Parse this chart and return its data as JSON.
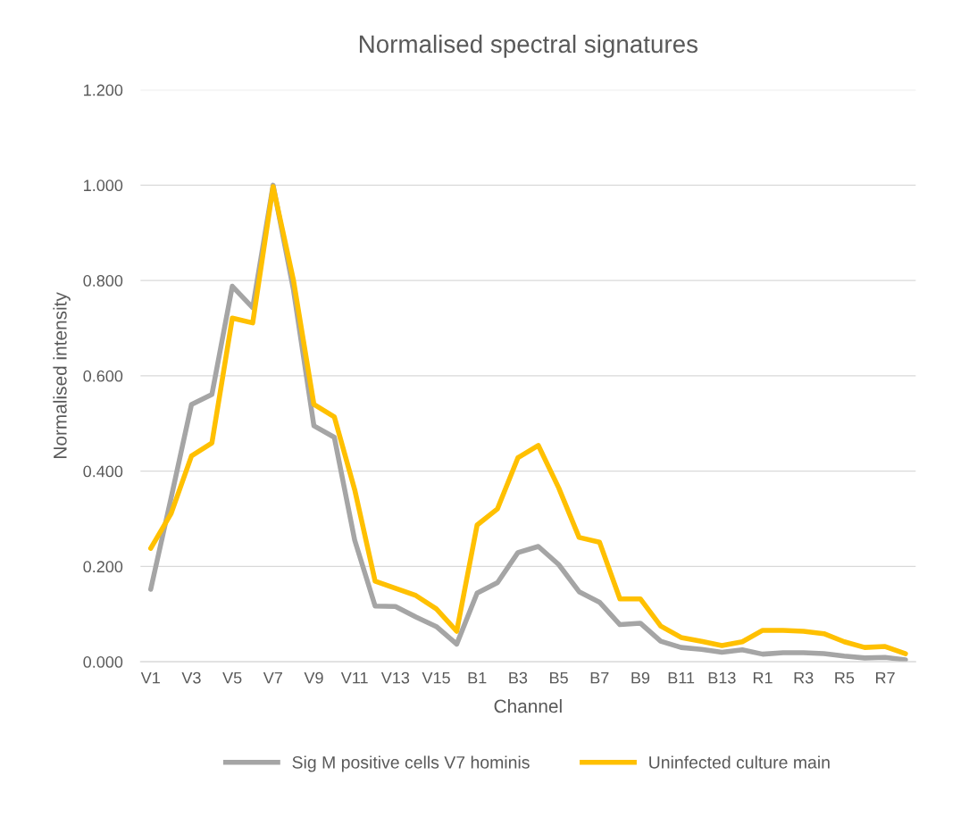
{
  "chart_data": {
    "type": "line",
    "title": "Normalised spectral signatures",
    "xlabel": "Channel",
    "ylabel": "Normalised intensity",
    "categories": [
      "V1",
      null,
      "V3",
      null,
      "V5",
      null,
      "V7",
      null,
      "V9",
      null,
      "V11",
      null,
      "V13",
      null,
      "V15",
      null,
      "B1",
      null,
      "B3",
      null,
      "B5",
      null,
      "B7",
      null,
      "B9",
      null,
      "B11",
      null,
      "B13",
      null,
      "R1",
      null,
      "R3",
      null,
      "R5",
      null,
      "R7",
      null
    ],
    "series": [
      {
        "name": "Sig M positive cells V7 hominis",
        "color": "#a5a5a5",
        "values": [
          0.152,
          0.344,
          0.54,
          0.561,
          0.788,
          0.743,
          1.0,
          0.78,
          0.495,
          0.471,
          0.255,
          0.117,
          0.116,
          0.094,
          0.074,
          0.037,
          0.144,
          0.166,
          0.229,
          0.242,
          0.204,
          0.147,
          0.125,
          0.078,
          0.081,
          0.043,
          0.03,
          0.026,
          0.02,
          0.025,
          0.016,
          0.019,
          0.019,
          0.017,
          0.012,
          0.008,
          0.009,
          0.004
        ]
      },
      {
        "name": "Uninfected culture main",
        "color": "#ffc000",
        "values": [
          0.238,
          0.311,
          0.432,
          0.459,
          0.721,
          0.711,
          0.997,
          0.8,
          0.54,
          0.514,
          0.361,
          0.169,
          0.154,
          0.139,
          0.111,
          0.064,
          0.287,
          0.321,
          0.428,
          0.454,
          0.365,
          0.261,
          0.251,
          0.132,
          0.132,
          0.075,
          0.051,
          0.043,
          0.034,
          0.042,
          0.066,
          0.066,
          0.064,
          0.059,
          0.042,
          0.03,
          0.032,
          0.017
        ]
      }
    ],
    "ylim": [
      0,
      1.2
    ],
    "yticks": [
      {
        "value": 0,
        "label": "0.000"
      },
      {
        "value": 0.2,
        "label": "0.200"
      },
      {
        "value": 0.4,
        "label": "0.400"
      },
      {
        "value": 0.6,
        "label": "0.600"
      },
      {
        "value": 0.8,
        "label": "0.800"
      },
      {
        "value": 1.0,
        "label": "1.000"
      },
      {
        "value": 1.2,
        "label": "1.200"
      }
    ],
    "grid": "y",
    "legend": "bottom",
    "marker": "none",
    "line_style": "solid"
  }
}
